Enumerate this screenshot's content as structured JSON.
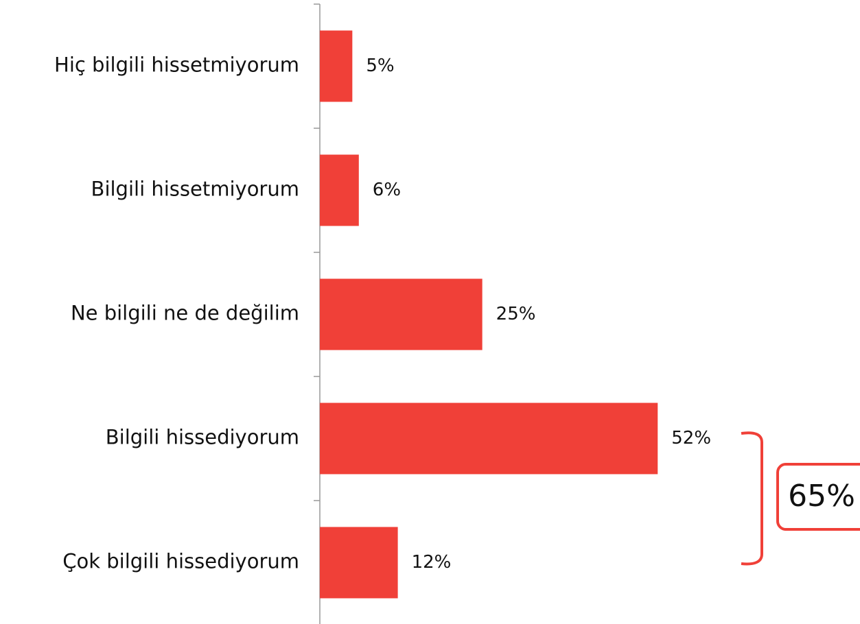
{
  "chart_data": {
    "type": "bar",
    "orientation": "horizontal",
    "categories": [
      "Hiç bilgili hissetmiyorum",
      "Bilgili hissetmiyorum",
      "Ne bilgili ne de değilim",
      "Bilgili hissediyorum",
      "Çok bilgili hissediyorum"
    ],
    "values": [
      5,
      6,
      25,
      52,
      12
    ],
    "value_labels": [
      "5%",
      "6%",
      "25%",
      "52%",
      "12%"
    ],
    "color": "#f04038",
    "xlim": [
      0,
      60
    ],
    "annotation": "65%"
  }
}
